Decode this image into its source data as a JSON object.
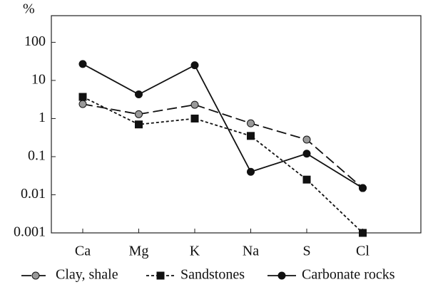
{
  "chart_data": {
    "type": "line",
    "y_label": "%",
    "log_scale": true,
    "categories": [
      "Ca",
      "Mg",
      "K",
      "Na",
      "S",
      "Cl"
    ],
    "ylim": [
      0.001,
      500
    ],
    "yticks": [
      0.001,
      0.01,
      0.1,
      1,
      10,
      100
    ],
    "legend": "bottom",
    "series": [
      {
        "name": "Clay, shale",
        "color": "#999999",
        "marker": "circle",
        "linestyle": "dashed",
        "values": [
          2.4,
          1.3,
          2.3,
          0.75,
          0.28,
          0.015
        ]
      },
      {
        "name": "Sandstones",
        "color": "#111111",
        "marker": "square",
        "linestyle": "dotted",
        "values": [
          3.7,
          0.7,
          1.0,
          0.35,
          0.025,
          0.001
        ]
      },
      {
        "name": "Carbonate rocks",
        "color": "#111111",
        "marker": "circle",
        "linestyle": "solid",
        "values": [
          27,
          4.3,
          25,
          0.04,
          0.12,
          0.015
        ]
      }
    ]
  }
}
